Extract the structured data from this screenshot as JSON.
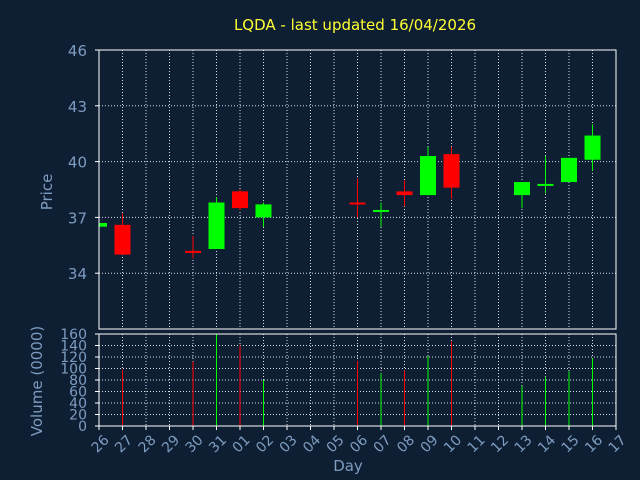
{
  "chart_data": [
    {
      "type": "candlestick",
      "title": "LQDA - last updated 16/04/2026",
      "ylabel": "Price",
      "ylim": [
        31,
        46
      ],
      "yticks": [
        34,
        37,
        40,
        43,
        46
      ],
      "categories": [
        "26",
        "27",
        "28",
        "29",
        "30",
        "31",
        "01",
        "02",
        "03",
        "04",
        "05",
        "06",
        "07",
        "08",
        "09",
        "10",
        "11",
        "12",
        "13",
        "14",
        "15",
        "16",
        "17"
      ],
      "candles": [
        {
          "day": "26",
          "open": 36.7,
          "high": 36.8,
          "low": 36.5,
          "close": 36.5,
          "color": "#00ff00"
        },
        {
          "day": "27",
          "open": 36.6,
          "high": 37.2,
          "low": 35.0,
          "close": 35.0,
          "color": "#ff0000"
        },
        {
          "day": "30",
          "open": 35.2,
          "high": 36.0,
          "low": 34.8,
          "close": 35.1,
          "color": "#ff0000"
        },
        {
          "day": "31",
          "open": 35.3,
          "high": 38.1,
          "low": 35.3,
          "close": 37.8,
          "color": "#00ff00"
        },
        {
          "day": "01",
          "open": 38.4,
          "high": 38.5,
          "low": 37.4,
          "close": 37.5,
          "color": "#ff0000"
        },
        {
          "day": "02",
          "open": 37.0,
          "high": 37.8,
          "low": 36.5,
          "close": 37.7,
          "color": "#00ff00"
        },
        {
          "day": "06",
          "open": 37.8,
          "high": 39.1,
          "low": 37.0,
          "close": 37.7,
          "color": "#ff0000"
        },
        {
          "day": "07",
          "open": 37.3,
          "high": 37.8,
          "low": 36.5,
          "close": 37.4,
          "color": "#00ff00"
        },
        {
          "day": "08",
          "open": 38.4,
          "high": 39.0,
          "low": 37.6,
          "close": 38.2,
          "color": "#ff0000"
        },
        {
          "day": "09",
          "open": 38.2,
          "high": 40.8,
          "low": 38.2,
          "close": 40.3,
          "color": "#00ff00"
        },
        {
          "day": "10",
          "open": 40.4,
          "high": 40.8,
          "low": 38.0,
          "close": 38.6,
          "color": "#ff0000"
        },
        {
          "day": "13",
          "open": 38.2,
          "high": 38.9,
          "low": 37.5,
          "close": 38.9,
          "color": "#00ff00"
        },
        {
          "day": "14",
          "open": 38.7,
          "high": 40.3,
          "low": 38.3,
          "close": 38.8,
          "color": "#00ff00"
        },
        {
          "day": "15",
          "open": 38.9,
          "high": 40.2,
          "low": 38.9,
          "close": 40.2,
          "color": "#00ff00"
        },
        {
          "day": "16",
          "open": 40.1,
          "high": 42.0,
          "low": 39.5,
          "close": 41.4,
          "color": "#00ff00"
        }
      ]
    },
    {
      "type": "bar",
      "ylabel": "Volume (0000)",
      "xlabel": "Day",
      "ylim": [
        0,
        160
      ],
      "yticks": [
        0,
        20,
        40,
        60,
        80,
        100,
        120,
        140,
        160
      ],
      "categories": [
        "26",
        "27",
        "28",
        "29",
        "30",
        "31",
        "01",
        "02",
        "03",
        "04",
        "05",
        "06",
        "07",
        "08",
        "09",
        "10",
        "11",
        "12",
        "13",
        "14",
        "15",
        "16",
        "17"
      ],
      "bars": [
        {
          "day": "26",
          "value": 55,
          "color": "#00ff00"
        },
        {
          "day": "27",
          "value": 98,
          "color": "#ff0000"
        },
        {
          "day": "30",
          "value": 112,
          "color": "#ff0000"
        },
        {
          "day": "31",
          "value": 160,
          "color": "#00ff00"
        },
        {
          "day": "01",
          "value": 140,
          "color": "#ff0000"
        },
        {
          "day": "02",
          "value": 80,
          "color": "#00ff00"
        },
        {
          "day": "06",
          "value": 113,
          "color": "#ff0000"
        },
        {
          "day": "07",
          "value": 92,
          "color": "#00ff00"
        },
        {
          "day": "08",
          "value": 97,
          "color": "#ff0000"
        },
        {
          "day": "09",
          "value": 122,
          "color": "#00ff00"
        },
        {
          "day": "10",
          "value": 147,
          "color": "#ff0000"
        },
        {
          "day": "13",
          "value": 70,
          "color": "#00ff00"
        },
        {
          "day": "14",
          "value": 85,
          "color": "#00ff00"
        },
        {
          "day": "15",
          "value": 95,
          "color": "#00ff00"
        },
        {
          "day": "16",
          "value": 118,
          "color": "#00ff00"
        }
      ]
    }
  ]
}
